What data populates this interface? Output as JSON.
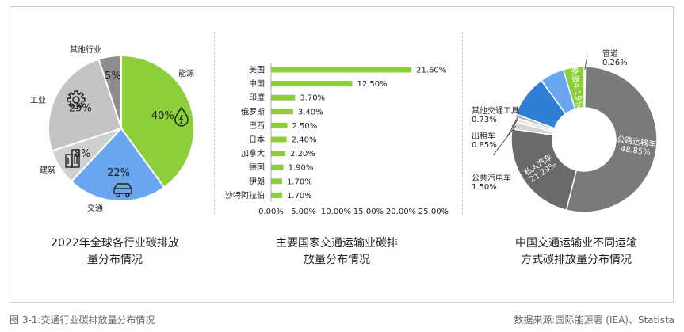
{
  "colors": {
    "green": "#8ccf3a",
    "blue": "#6aa6ef",
    "light_gray": "#cfcfcf",
    "mid_gray": "#bdbdbd",
    "dark_gray": "#8e8e8e",
    "bar_green": "#8ccf3a",
    "donut_dark": "#7a7a7a",
    "donut_blue_dark": "#2f7ed8",
    "donut_blue_light": "#6aa6ef",
    "donut_green": "#8ccf3a",
    "donut_light": "#d6d6d6"
  },
  "chart_data": [
    {
      "type": "pie",
      "title_lines": [
        "2022年全球各行业碳排放",
        "量分布情况"
      ],
      "slices": [
        {
          "label": "能源",
          "value": 40,
          "value_label": "40%",
          "color": "#8ccf3a",
          "icon": "flame-drop-icon"
        },
        {
          "label": "交通",
          "value": 22,
          "value_label": "22%",
          "color": "#6aa6ef",
          "icon": "car-icon"
        },
        {
          "label": "建筑",
          "value": 8,
          "value_label": "8%",
          "color": "#d0d0d0",
          "icon": "building-icon"
        },
        {
          "label": "工业",
          "value": 25,
          "value_label": "25%",
          "color": "#c4c4c4",
          "icon": "gear-icon"
        },
        {
          "label": "其他行业",
          "value": 5,
          "value_label": "5%",
          "color": "#8e8e8e",
          "icon": ""
        }
      ]
    },
    {
      "type": "bar",
      "orientation": "horizontal",
      "title_lines": [
        "主要国家交通运输业碳排",
        "放量分布情况"
      ],
      "categories": [
        "美国",
        "中国",
        "印度",
        "俄罗斯",
        "巴西",
        "日本",
        "加拿大",
        "德国",
        "伊朗",
        "沙特阿拉伯"
      ],
      "values": [
        21.6,
        12.5,
        3.7,
        3.4,
        2.5,
        2.4,
        2.2,
        1.9,
        1.7,
        1.7
      ],
      "value_labels": [
        "21.60%",
        "12.50%",
        "3.70%",
        "3.40%",
        "2.50%",
        "2.40%",
        "2.20%",
        "1.90%",
        "1.70%",
        "1.70%"
      ],
      "xlim": [
        0,
        25
      ],
      "x_ticks": [
        "0.00%",
        "5.00%",
        "10.00%",
        "15.00%",
        "20.00%",
        "25.00%"
      ]
    },
    {
      "type": "pie",
      "variant": "donut",
      "title_lines": [
        "中国交通运输业不同运输",
        "方式碳排放量分布情况"
      ],
      "slices": [
        {
          "label": "管道",
          "value": 0.26,
          "value_label": "0.26%",
          "color": "#9a9a9a"
        },
        {
          "label": "公路运输车",
          "value": 48.85,
          "value_label": "48.85%",
          "color": "#7a7a7a"
        },
        {
          "label": "私人汽车",
          "value": 21.29,
          "value_label": "21.29%",
          "color": "#6a6a6a"
        },
        {
          "label": "公共汽电车",
          "value": 1.5,
          "value_label": "1.50%",
          "color": "#d6d6d6"
        },
        {
          "label": "出租车",
          "value": 0.85,
          "value_label": "0.85%",
          "color": "#e6e6e6"
        },
        {
          "label": "其他交通工具",
          "value": 0.73,
          "value_label": "0.73%",
          "color": "#bdbdbd"
        },
        {
          "label": "",
          "value": 8.5,
          "value_label": "",
          "color": "#2f7ed8"
        },
        {
          "label": "",
          "value": 4.9,
          "value_label": "",
          "color": "#6aa6ef"
        },
        {
          "label": "轨道",
          "value": 4.19,
          "value_label": "4.19%",
          "color": "#8ccf3a"
        }
      ]
    }
  ],
  "footer": {
    "left": "图 3-1:交通行业碳排放量分布情况",
    "right": "数据来源:国际能源署 (IEA)、Statista"
  }
}
